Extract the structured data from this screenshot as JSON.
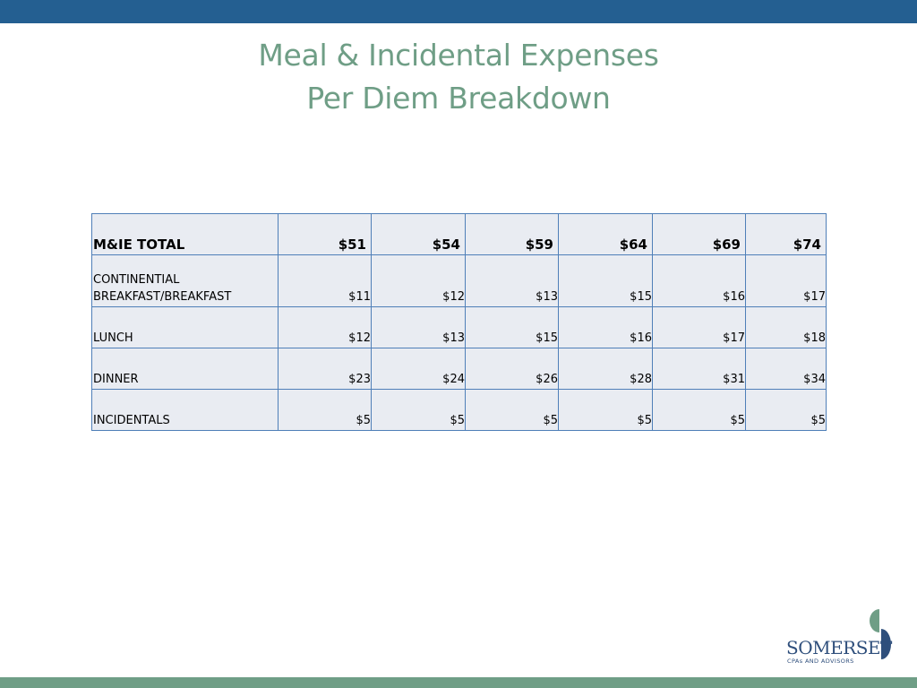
{
  "title": {
    "line1": "Meal & Incidental Expenses",
    "line2": "Per Diem Breakdown"
  },
  "table": {
    "total_row": {
      "label": "M&IE TOTAL",
      "values": [
        "$51",
        "$54",
        "$59",
        "$64",
        "$69",
        "$74"
      ]
    },
    "rows": [
      {
        "label_line1": "CONTINENTIAL",
        "label_line2": "BREAKFAST/BREAKFAST",
        "values": [
          "$11",
          "$12",
          "$13",
          "$15",
          "$16",
          "$17"
        ]
      },
      {
        "label": "LUNCH",
        "values": [
          "$12",
          "$13",
          "$15",
          "$16",
          "$17",
          "$18"
        ]
      },
      {
        "label": "DINNER",
        "values": [
          "$23",
          "$24",
          "$26",
          "$28",
          "$31",
          "$34"
        ]
      },
      {
        "label": "INCIDENTALS",
        "values": [
          "$5",
          "$5",
          "$5",
          "$5",
          "$5",
          "$5"
        ]
      }
    ]
  },
  "logo": {
    "name": "SOMERSET",
    "tagline": "CPAs AND ADVISORS"
  },
  "colors": {
    "top_band": "#245f91",
    "bottom_band": "#6f9e86",
    "title": "#6f9e86",
    "table_border": "#4f7fb8",
    "table_fill": "#e9ecf2",
    "logo_text": "#2f4f7c"
  }
}
